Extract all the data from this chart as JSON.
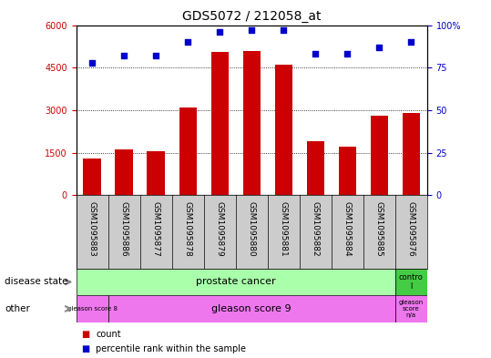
{
  "title": "GDS5072 / 212058_at",
  "samples": [
    "GSM1095883",
    "GSM1095886",
    "GSM1095877",
    "GSM1095878",
    "GSM1095879",
    "GSM1095880",
    "GSM1095881",
    "GSM1095882",
    "GSM1095884",
    "GSM1095885",
    "GSM1095876"
  ],
  "counts": [
    1300,
    1600,
    1550,
    3100,
    5050,
    5100,
    4600,
    1900,
    1700,
    2800,
    2900
  ],
  "percentiles": [
    78,
    82,
    82,
    90,
    96,
    97,
    97,
    83,
    83,
    87,
    90
  ],
  "ylim_left": [
    0,
    6000
  ],
  "ylim_right": [
    0,
    100
  ],
  "yticks_left": [
    0,
    1500,
    3000,
    4500,
    6000
  ],
  "yticks_right": [
    0,
    25,
    50,
    75,
    100
  ],
  "bar_color": "#cc0000",
  "dot_color": "#0000cc",
  "pc_color": "#aaffaa",
  "ctrl_color": "#44cc44",
  "gleason_color": "#ee77ee",
  "label_bg_color": "#cccccc",
  "legend_count_label": "count",
  "legend_pct_label": "percentile rank within the sample",
  "background_color": "#ffffff",
  "tick_label_color_left": "#cc0000",
  "tick_label_color_right": "#0000cc",
  "figw": 5.39,
  "figh": 3.93,
  "dpi": 100
}
